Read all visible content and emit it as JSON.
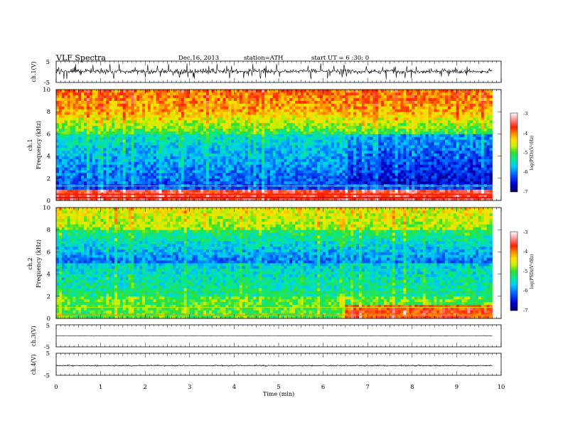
{
  "header": {
    "title": "VLF  Spectra",
    "date": "Dec.16, 2013",
    "station": "station=ATH",
    "start": "start  UT  =   6  :30: 0"
  },
  "chart_data": [
    {
      "type": "line",
      "panel": "ch1-waveform",
      "ylabel": "ch.1(V)",
      "ylim": [
        -5,
        5
      ],
      "yticks": [
        "5",
        "-5"
      ],
      "xlim": [
        0,
        10
      ],
      "data_end_min": 9.8,
      "description_values": {
        "baseline_v": 0.2,
        "noise_v": 1.6,
        "spike_v": 3.8
      }
    },
    {
      "type": "heatmap",
      "panel": "ch1-spectrogram",
      "ylabel_top": "ch.1",
      "ylabel": "Frequency  (kHz)",
      "ylim": [
        0,
        10
      ],
      "yticks": [
        "0",
        "2",
        "4",
        "6",
        "8",
        "10"
      ],
      "xlim": [
        0,
        10
      ],
      "data_end_min": 9.8,
      "colorbar": {
        "label": "log(PSD)(V²/Hz)",
        "range": [
          -7,
          -3
        ],
        "ticks": [
          "-3",
          "-4",
          "-5",
          "-6",
          "-7"
        ]
      }
    },
    {
      "type": "heatmap",
      "panel": "ch2-spectrogram",
      "ylabel_top": "ch.2",
      "ylabel": "Frequency  (kHz)",
      "ylim": [
        0,
        10
      ],
      "yticks": [
        "0",
        "2",
        "4",
        "6",
        "8",
        "10"
      ],
      "xlim": [
        0,
        10
      ],
      "data_end_min": 9.8,
      "colorbar": {
        "label": "log(PSD)(V²/Hz)",
        "range": [
          -7,
          -3
        ],
        "ticks": [
          "-3",
          "-4",
          "-5",
          "-6",
          "-7"
        ]
      }
    },
    {
      "type": "line",
      "panel": "ch3-waveform",
      "ylabel": "ch.3(V)",
      "ylim": [
        -5,
        5
      ],
      "yticks": [
        "5",
        "-5"
      ],
      "xlim": [
        0,
        10
      ],
      "data_end_min": 9.8,
      "description_values": {
        "baseline_v": 0.0,
        "noise_v": 0.15
      }
    },
    {
      "type": "line",
      "panel": "ch4-waveform",
      "ylabel": "ch.4(V)",
      "ylim": [
        -5,
        5
      ],
      "yticks": [
        "5",
        "-5"
      ],
      "xlim": [
        0,
        10
      ],
      "data_end_min": 9.8,
      "description_values": {
        "baseline_v": -0.6,
        "noise_v": 0.35
      }
    }
  ],
  "x_axis": {
    "label": "Time  (min)",
    "range": [
      0,
      10
    ],
    "ticks": [
      "0",
      "1",
      "2",
      "3",
      "4",
      "5",
      "6",
      "7",
      "8",
      "9",
      "10"
    ]
  },
  "colors": {
    "psd_scale": [
      "#000060",
      "#0000c8",
      "#0060ff",
      "#00c8ff",
      "#00e8a0",
      "#30e030",
      "#c8f000",
      "#ffe000",
      "#ff9000",
      "#ff2000",
      "#e00000",
      "#ff9090",
      "#ffffff"
    ]
  }
}
